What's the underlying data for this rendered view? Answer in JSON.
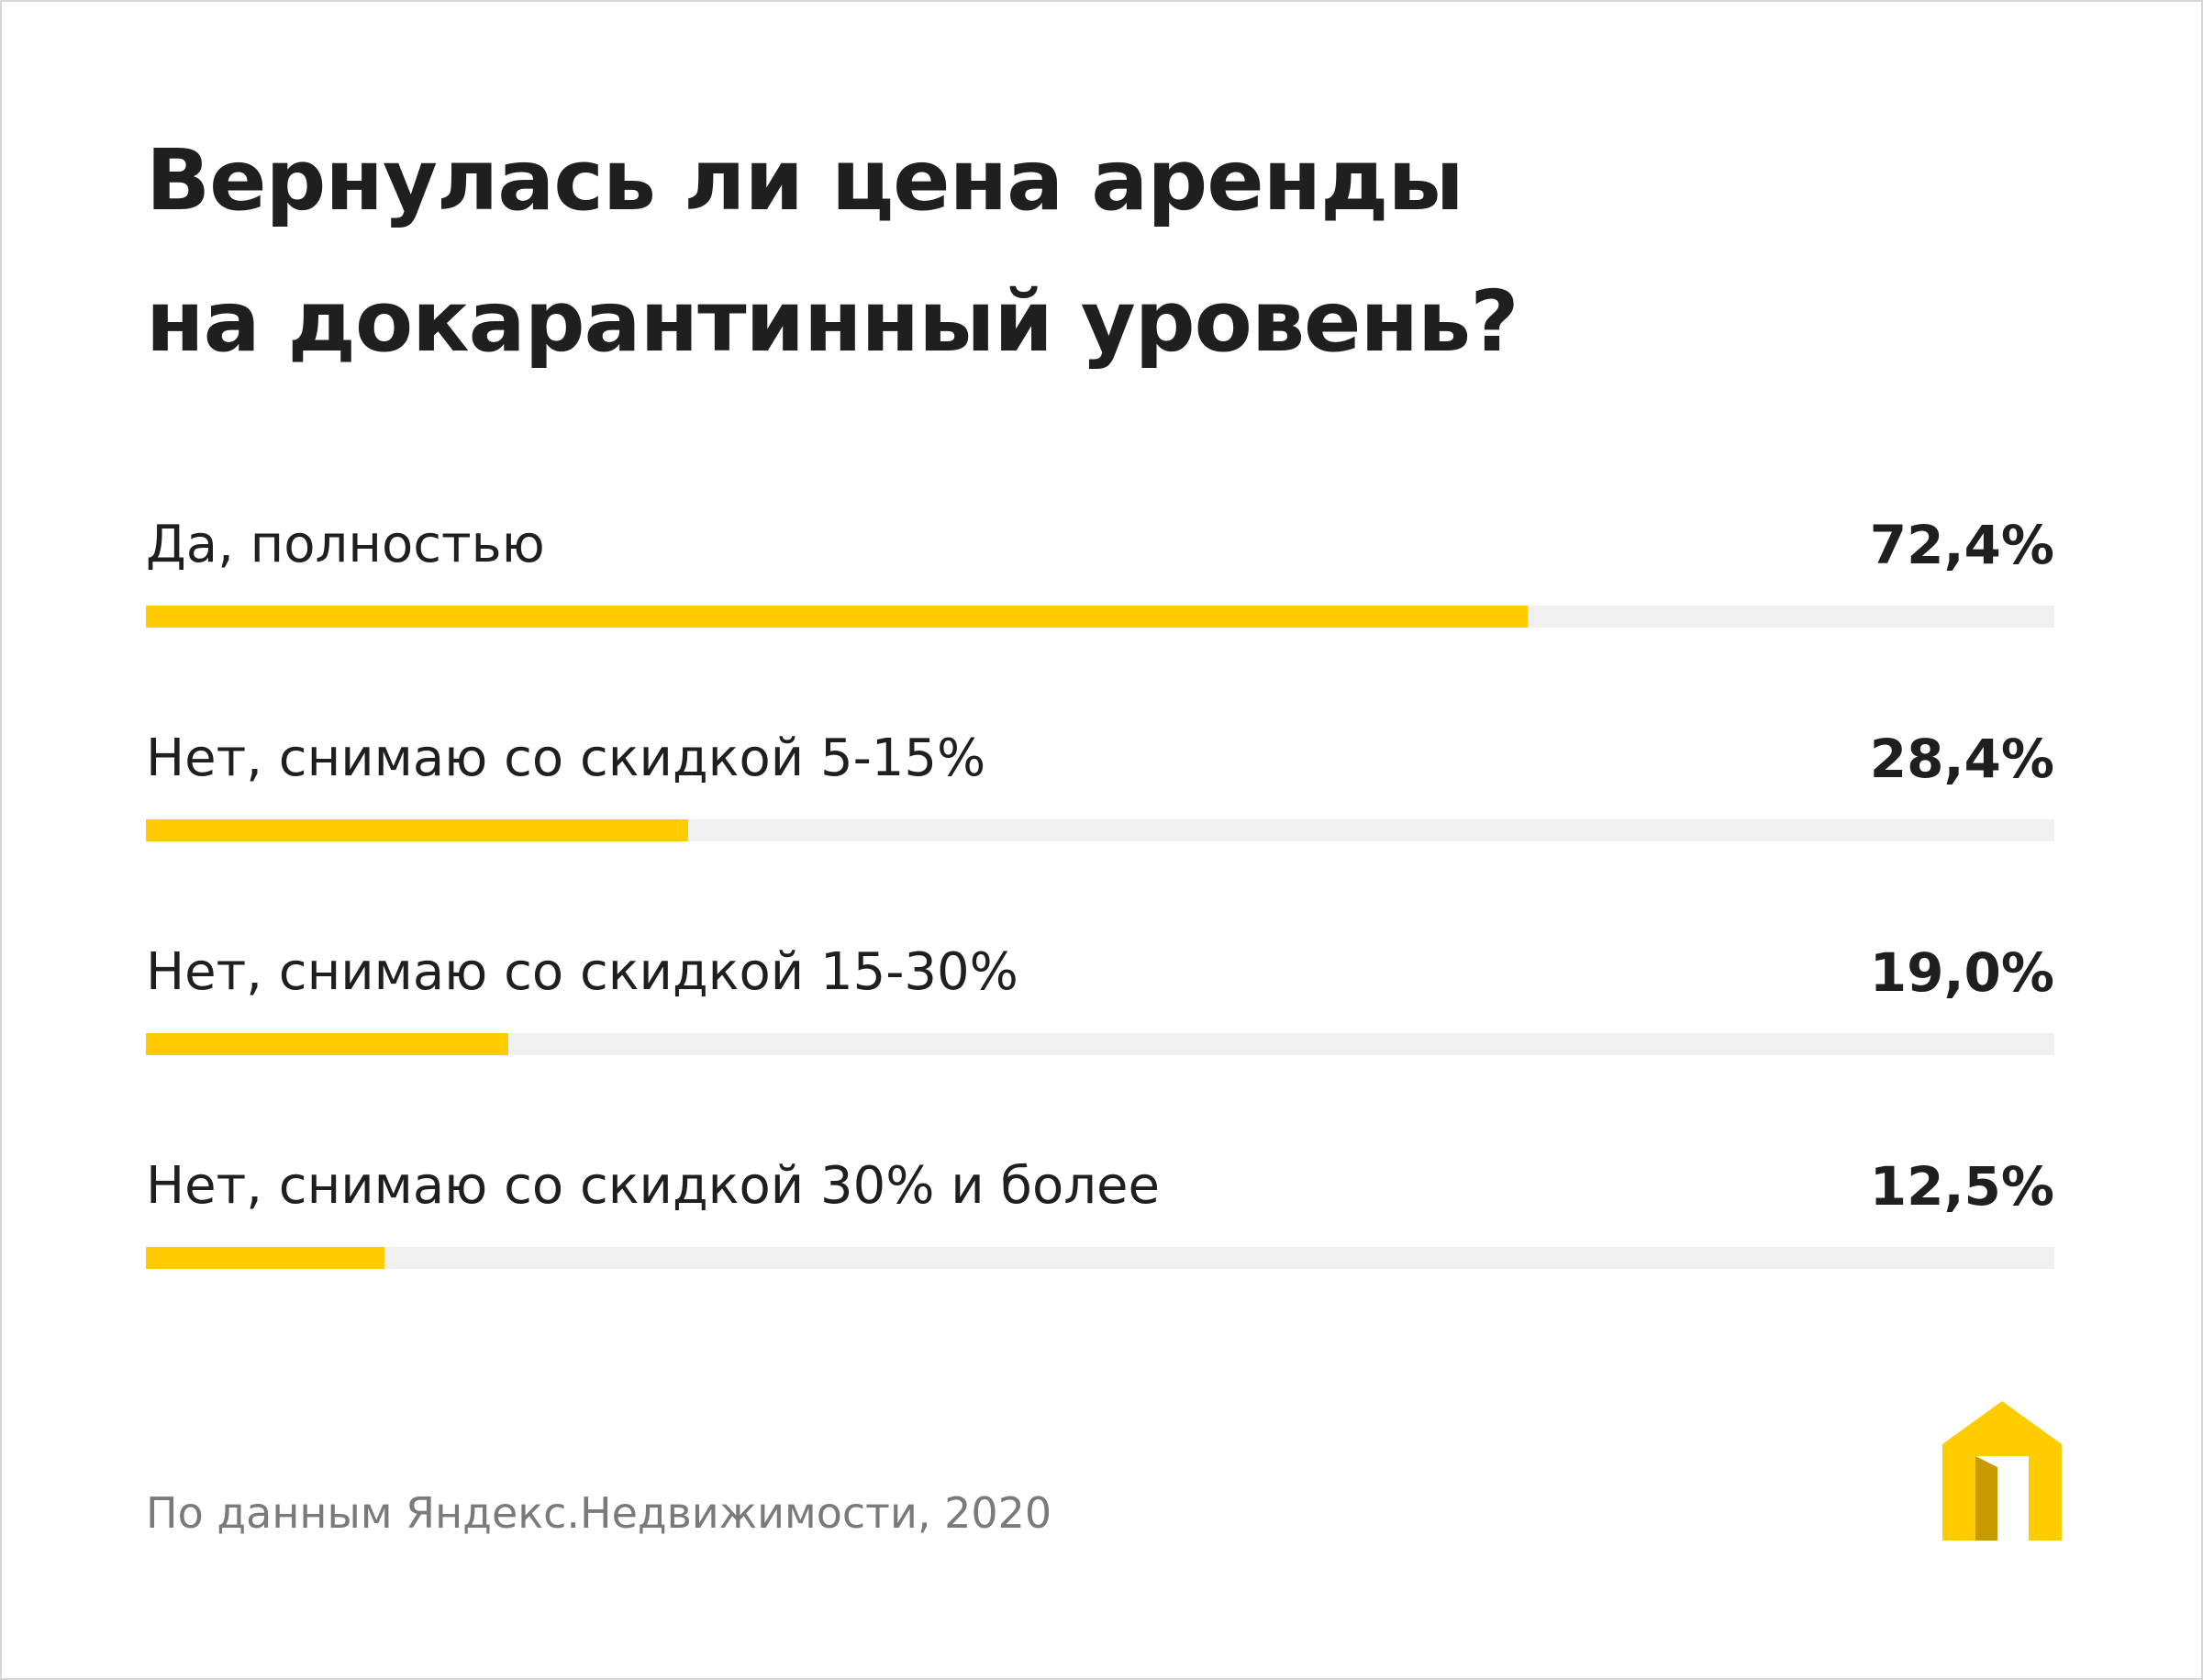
{
  "header": {
    "title_line1": "Вернулась ли цена аренды",
    "title_line2": "на докарантинный уровень?"
  },
  "chart_data": {
    "type": "bar",
    "orientation": "horizontal",
    "title": "Вернулась ли цена аренды на докарантинный уровень?",
    "categories": [
      "Да, полностью",
      "Нет, снимаю со скидкой 5-15%",
      "Нет, снимаю со скидкой 15-30%",
      "Нет, снимаю со скидкой 30% и более"
    ],
    "values": [
      72.4,
      28.4,
      19.0,
      12.5
    ],
    "value_labels": [
      "72,4%",
      "28,4%",
      "19,0%",
      "12,5%"
    ],
    "unit": "%",
    "xlim": [
      0,
      100
    ],
    "bar_color": "#ffcc00",
    "track_color": "#f0f0f0"
  },
  "footer": {
    "source": "По данным Яндекс.Недвижимости, 2020"
  },
  "logo": {
    "icon": "house-icon",
    "colors": [
      "#ffcc00",
      "#f2bb00",
      "#c99a00"
    ]
  }
}
